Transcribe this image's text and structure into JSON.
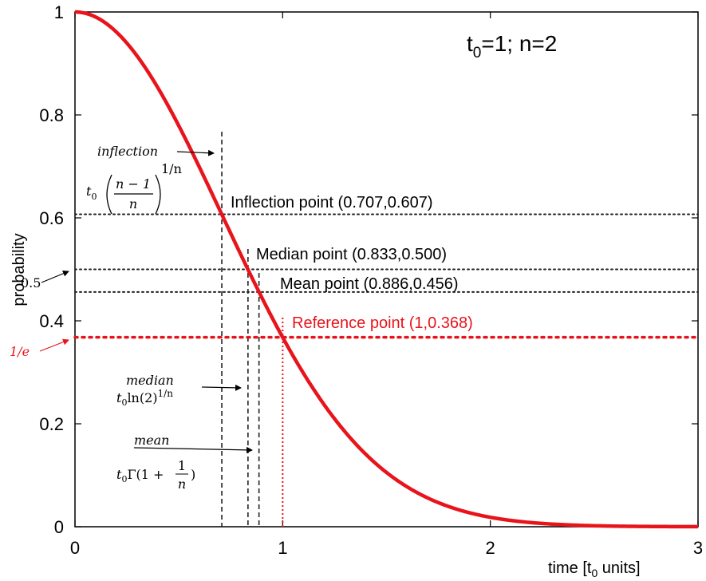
{
  "chart_data": {
    "type": "line",
    "title_text": "t",
    "title_sub": "0",
    "title_rest": "=1; n=2",
    "xlabel_text": "time [t",
    "xlabel_sub": "0",
    "xlabel_rest": " units]",
    "ylabel": "probability",
    "xlim": [
      0,
      3
    ],
    "ylim": [
      0,
      1
    ],
    "x_ticks": [
      "0",
      "1",
      "2",
      "3"
    ],
    "y_ticks": [
      "0",
      "0.2",
      "0.4",
      "0.6",
      "0.8",
      "1"
    ],
    "grid": false,
    "series": [
      {
        "formula": "exp(-(t/t0)^n)",
        "t0": 1,
        "n": 2,
        "color": "#e8141c"
      }
    ],
    "points": [
      {
        "key": "inflection",
        "x": 0.707,
        "y": 0.607,
        "label": "Inflection point (0.707,0.607)",
        "color": "#222222"
      },
      {
        "key": "median",
        "x": 0.833,
        "y": 0.5,
        "label": "Median point (0.833,0.500)",
        "color": "#222222"
      },
      {
        "key": "mean",
        "x": 0.886,
        "y": 0.456,
        "label": "Mean point (0.886,0.456)",
        "color": "#222222"
      },
      {
        "key": "reference",
        "x": 1,
        "y": 0.368,
        "label": "Reference point (1,0.368)",
        "color": "#e8141c"
      }
    ],
    "side_annotations": {
      "half": "0.5",
      "inv_e": "1/e"
    },
    "formula_labels": {
      "inflection": "inflection",
      "median": "median",
      "median_t": "t",
      "median_sub": "0",
      "median_ln": "ln(2)",
      "median_exp": "1/n",
      "mean": "mean",
      "mean_t": "t",
      "mean_sub": "0",
      "mean_gamma": "Γ(1 + ",
      "mean_close": ")",
      "frac_one": "1",
      "frac_n": "n",
      "infl_t": "t",
      "infl_sub": "0",
      "infl_num": "n − 1",
      "infl_den": "n",
      "infl_exp": "1/n"
    },
    "colors": {
      "curve": "#e8141c",
      "reference": "#e8141c",
      "guide": "#222222"
    }
  }
}
